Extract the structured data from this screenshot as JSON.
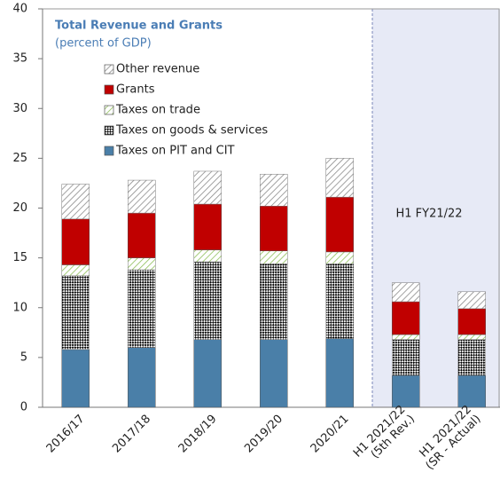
{
  "chart_data": {
    "type": "stacked_bar",
    "title": "Total Revenue and Grants",
    "subtitle": "(percent of GDP)",
    "annotation": "H1 FY21/22",
    "categories": [
      [
        "2016/17"
      ],
      [
        "2017/18"
      ],
      [
        "2018/19"
      ],
      [
        "2019/20"
      ],
      [
        "2020/21"
      ],
      [
        "H1 2021/22",
        "(5th Rev.)"
      ],
      [
        "H1 2021/22",
        "(SR - Actual)"
      ]
    ],
    "series": [
      {
        "name": "Taxes on PIT and CIT",
        "color": "#4a7fa8",
        "pattern": "solid",
        "values": [
          5.8,
          6.0,
          6.8,
          6.8,
          6.9,
          3.2,
          3.2
        ]
      },
      {
        "name": "Taxes on goods & services",
        "color": "#000000",
        "pattern": "dots",
        "values": [
          7.4,
          7.8,
          7.8,
          7.6,
          7.5,
          3.6,
          3.6
        ]
      },
      {
        "name": "Taxes on trade",
        "color": "#8fbf5a",
        "pattern": "hatch",
        "values": [
          1.1,
          1.2,
          1.2,
          1.3,
          1.2,
          0.5,
          0.5
        ]
      },
      {
        "name": "Grants",
        "color": "#c00000",
        "pattern": "solid",
        "values": [
          4.6,
          4.5,
          4.6,
          4.5,
          5.5,
          3.3,
          2.6
        ]
      },
      {
        "name": "Other revenue",
        "color": "#8a8a8a",
        "pattern": "hatch",
        "values": [
          3.5,
          3.3,
          3.3,
          3.2,
          3.9,
          1.9,
          1.7
        ]
      }
    ],
    "ylim": [
      0,
      40
    ],
    "yticks": [
      0,
      5,
      10,
      15,
      20,
      25,
      30,
      35,
      40
    ]
  }
}
